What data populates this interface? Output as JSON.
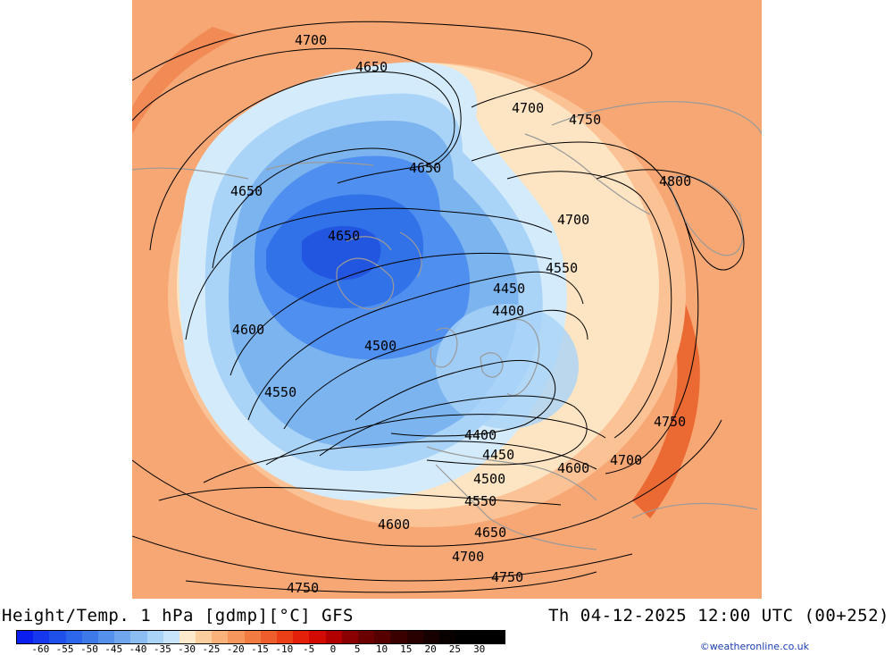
{
  "map": {
    "contour_labels": [
      "4700",
      "4650",
      "4700",
      "4750",
      "4650",
      "4800",
      "4650",
      "4700",
      "4650",
      "4550",
      "4450",
      "4400",
      "4600",
      "4500",
      "4550",
      "4400",
      "4450",
      "4750",
      "4500",
      "4600",
      "4700",
      "4550",
      "4600",
      "4650",
      "4700",
      "4750",
      "4750"
    ],
    "colors": {
      "warm_dark": "#f28a55",
      "warm": "#f7a774",
      "warm_light": "#fbc296",
      "cream": "#fde4c2",
      "ice_light": "#d4ebfb",
      "ice": "#a9d3f7",
      "blue_light": "#7cb4f0",
      "blue": "#4f8ff0",
      "blue_mid": "#3272e9",
      "blue_deep": "#2356e0",
      "hot": "#eb6a34"
    }
  },
  "footer": {
    "title": "Height/Temp. 1 hPa [gdmp][°C] GFS",
    "valid_time": "Th 04-12-2025 12:00 UTC (00+252)",
    "credit": "©weatheronline.co.uk"
  },
  "scale": {
    "ticks": [
      "-60",
      "-55",
      "-50",
      "-45",
      "-40",
      "-35",
      "-30",
      "-25",
      "-20",
      "-15",
      "-10",
      "-5",
      "0",
      "5",
      "10",
      "15",
      "20",
      "25",
      "30"
    ],
    "colors": [
      "#0a1ef0",
      "#1538ee",
      "#1f50ec",
      "#2c66ea",
      "#3d7ae8",
      "#5590eb",
      "#6fa6ee",
      "#8cbdf2",
      "#a9d3f7",
      "#c8e4fb",
      "#fde9cc",
      "#fbcf9d",
      "#f9b27a",
      "#f6965c",
      "#f27b42",
      "#ee5e2a",
      "#ea3f17",
      "#e4200a",
      "#d20a02",
      "#b20000",
      "#8a0000",
      "#6a0000",
      "#560000",
      "#3a0000",
      "#280000",
      "#180000",
      "#080000",
      "#000000",
      "#000000",
      "#000000"
    ]
  }
}
